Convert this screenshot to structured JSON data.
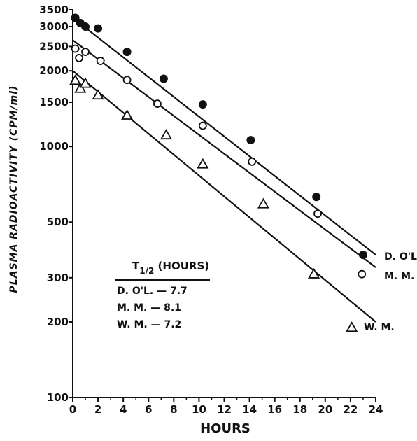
{
  "chart_data": {
    "type": "scatter",
    "title": "",
    "xlabel": "HOURS",
    "ylabel": "PLASMA RADIOACTIVITY (CPM/ml)",
    "x_scale": "linear",
    "y_scale": "log",
    "xlim": [
      0,
      24
    ],
    "ylim": [
      100,
      3500
    ],
    "x_ticks": [
      0,
      2,
      4,
      6,
      8,
      10,
      12,
      14,
      16,
      18,
      20,
      22,
      24
    ],
    "y_ticks": [
      100,
      200,
      300,
      500,
      1000,
      1500,
      2000,
      2500,
      3000,
      3500
    ],
    "y_tick_labels": [
      "100",
      "200",
      "300",
      "500",
      "1000",
      "1500",
      "2000",
      "2500",
      "3000",
      "3500"
    ],
    "grid": false,
    "series": [
      {
        "name": "D. O'L.",
        "marker": "filled-circle",
        "points": [
          {
            "x": 0.2,
            "y": 3250
          },
          {
            "x": 0.6,
            "y": 3100
          },
          {
            "x": 1.0,
            "y": 3000
          },
          {
            "x": 2.0,
            "y": 2950
          },
          {
            "x": 4.3,
            "y": 2380
          },
          {
            "x": 7.2,
            "y": 1860
          },
          {
            "x": 10.3,
            "y": 1470
          },
          {
            "x": 14.1,
            "y": 1060
          },
          {
            "x": 19.3,
            "y": 630
          },
          {
            "x": 23.0,
            "y": 370
          }
        ],
        "fit_line": [
          {
            "x": 0,
            "y": 3250
          },
          {
            "x": 24,
            "y": 370
          }
        ]
      },
      {
        "name": "M.M.",
        "marker": "open-circle",
        "points": [
          {
            "x": 0.2,
            "y": 2450
          },
          {
            "x": 0.5,
            "y": 2250
          },
          {
            "x": 1.0,
            "y": 2380
          },
          {
            "x": 2.2,
            "y": 2190
          },
          {
            "x": 4.3,
            "y": 1840
          },
          {
            "x": 6.7,
            "y": 1480
          },
          {
            "x": 10.3,
            "y": 1210
          },
          {
            "x": 14.2,
            "y": 870
          },
          {
            "x": 19.4,
            "y": 540
          },
          {
            "x": 22.9,
            "y": 310
          }
        ],
        "fit_line": [
          {
            "x": 0,
            "y": 2650
          },
          {
            "x": 24,
            "y": 330
          }
        ]
      },
      {
        "name": "W.M.",
        "marker": "open-triangle",
        "points": [
          {
            "x": 0.2,
            "y": 1830
          },
          {
            "x": 0.6,
            "y": 1700
          },
          {
            "x": 1.0,
            "y": 1780
          },
          {
            "x": 2.0,
            "y": 1600
          },
          {
            "x": 4.3,
            "y": 1330
          },
          {
            "x": 7.4,
            "y": 1110
          },
          {
            "x": 10.3,
            "y": 850
          },
          {
            "x": 15.1,
            "y": 590
          },
          {
            "x": 19.1,
            "y": 310
          },
          {
            "x": 22.1,
            "y": 190
          }
        ],
        "fit_line": [
          {
            "x": 0,
            "y": 2000
          },
          {
            "x": 24,
            "y": 200
          }
        ]
      }
    ],
    "legend": {
      "title": "T1/2 (HOURS)",
      "rows": [
        "D. O'L. — 7.7",
        "M.M. — 8.1",
        "W.M. — 7.2"
      ]
    }
  },
  "labels": {
    "xlabel": "HOURS",
    "ylabel": "PLASMA RADIOACTIVITY (CPM/ml)",
    "series_1": "D. O'L.",
    "series_2": "M. M.",
    "series_3": "W. M.",
    "legend_title_main": "T",
    "legend_title_sub": "1/2",
    "legend_title_rest": " (HOURS)",
    "legend_row_1": "D. O'L. — 7.7",
    "legend_row_2": "M. M. — 8.1",
    "legend_row_3": "W. M. — 7.2"
  }
}
